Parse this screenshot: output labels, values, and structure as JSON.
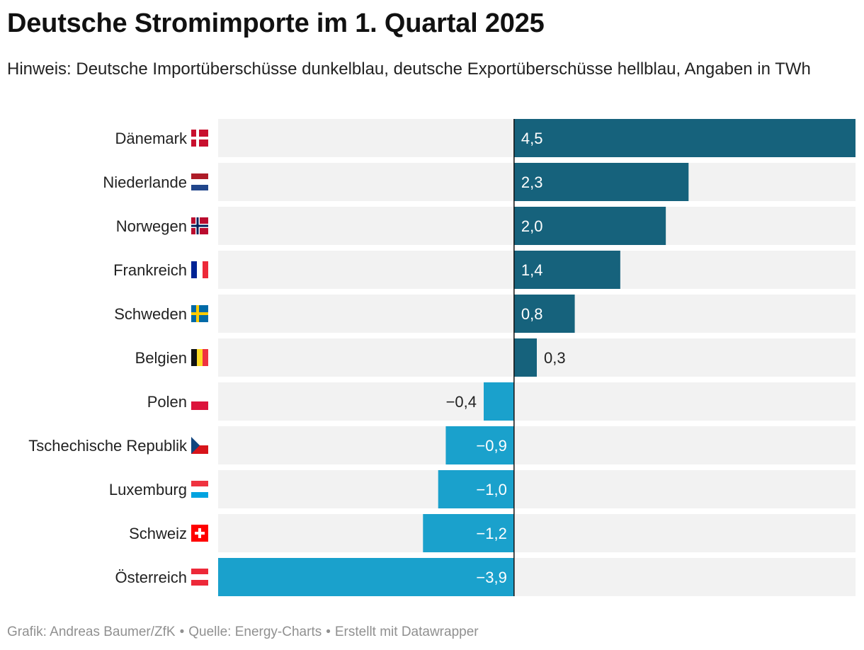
{
  "title": "Deutsche Stromimporte im 1. Quartal 2025",
  "subtitle": "Hinweis: Deutsche Importüberschüsse dunkelblau, deutsche Exportüberschüsse hellblau, Angaben in TWh",
  "footer": {
    "credit": "Grafik: Andreas Baumer/ZfK",
    "source": "Quelle: Energy-Charts",
    "tool": "Erstellt mit Datawrapper",
    "separator": "•"
  },
  "colors": {
    "import": "#16627c",
    "export": "#1aa1cc",
    "background_bar": "#f2f2f2",
    "axis": "#111111"
  },
  "chart_data": {
    "type": "bar",
    "orientation": "horizontal",
    "title": "Deutsche Stromimporte im 1. Quartal 2025",
    "unit": "TWh",
    "xlim": [
      -3.9,
      4.5
    ],
    "categories": [
      "Dänemark",
      "Niederlande",
      "Norwegen",
      "Frankreich",
      "Schweden",
      "Belgien",
      "Polen",
      "Tschechische Republik",
      "Luxemburg",
      "Schweiz",
      "Österreich"
    ],
    "flags": [
      "denmark-flag",
      "netherlands-flag",
      "norway-flag",
      "france-flag",
      "sweden-flag",
      "belgium-flag",
      "poland-flag",
      "czech-flag",
      "luxembourg-flag",
      "switzerland-flag",
      "austria-flag"
    ],
    "values": [
      4.5,
      2.3,
      2.0,
      1.4,
      0.8,
      0.3,
      -0.4,
      -0.9,
      -1.0,
      -1.2,
      -3.9
    ],
    "value_labels": [
      "4,5",
      "2,3",
      "2,0",
      "1,4",
      "0,8",
      "0,3",
      "−0,4",
      "−0,9",
      "−1,0",
      "−1,2",
      "−3,9"
    ]
  }
}
